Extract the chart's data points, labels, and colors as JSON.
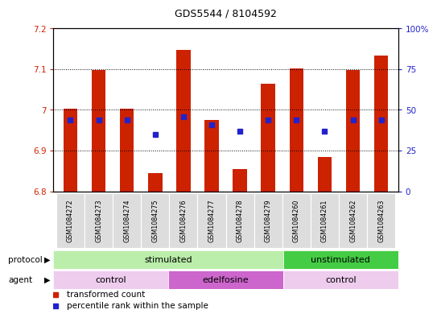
{
  "title": "GDS5544 / 8104592",
  "samples": [
    "GSM1084272",
    "GSM1084273",
    "GSM1084274",
    "GSM1084275",
    "GSM1084276",
    "GSM1084277",
    "GSM1084278",
    "GSM1084279",
    "GSM1084260",
    "GSM1084261",
    "GSM1084262",
    "GSM1084263"
  ],
  "bar_tops": [
    7.002,
    7.098,
    7.002,
    6.845,
    7.147,
    6.975,
    6.855,
    7.065,
    7.102,
    6.885,
    7.098,
    7.133
  ],
  "bar_bottom": 6.8,
  "percentiles": [
    44,
    44,
    44,
    35,
    46,
    41,
    37,
    44,
    44,
    37,
    44,
    44
  ],
  "ylim_left": [
    6.8,
    7.2
  ],
  "ylim_right": [
    0,
    100
  ],
  "yticks_left": [
    6.8,
    6.9,
    7.0,
    7.1,
    7.2
  ],
  "yticks_right": [
    0,
    25,
    50,
    75,
    100
  ],
  "ytick_labels_left": [
    "6.8",
    "6.9",
    "7",
    "7.1",
    "7.2"
  ],
  "ytick_labels_right": [
    "0",
    "25",
    "50",
    "75",
    "100%"
  ],
  "bar_color": "#cc2200",
  "dot_color": "#2222cc",
  "background_color": "#ffffff",
  "protocol_groups": [
    {
      "label": "stimulated",
      "start": 0,
      "end": 7,
      "color": "#bbeeaa"
    },
    {
      "label": "unstimulated",
      "start": 8,
      "end": 11,
      "color": "#44cc44"
    }
  ],
  "agent_groups": [
    {
      "label": "control",
      "start": 0,
      "end": 3,
      "color": "#eeccee"
    },
    {
      "label": "edelfosine",
      "start": 4,
      "end": 7,
      "color": "#cc66cc"
    },
    {
      "label": "control",
      "start": 8,
      "end": 11,
      "color": "#eeccee"
    }
  ],
  "legend_items": [
    {
      "label": "transformed count",
      "color": "#cc2200"
    },
    {
      "label": "percentile rank within the sample",
      "color": "#2222cc"
    }
  ]
}
